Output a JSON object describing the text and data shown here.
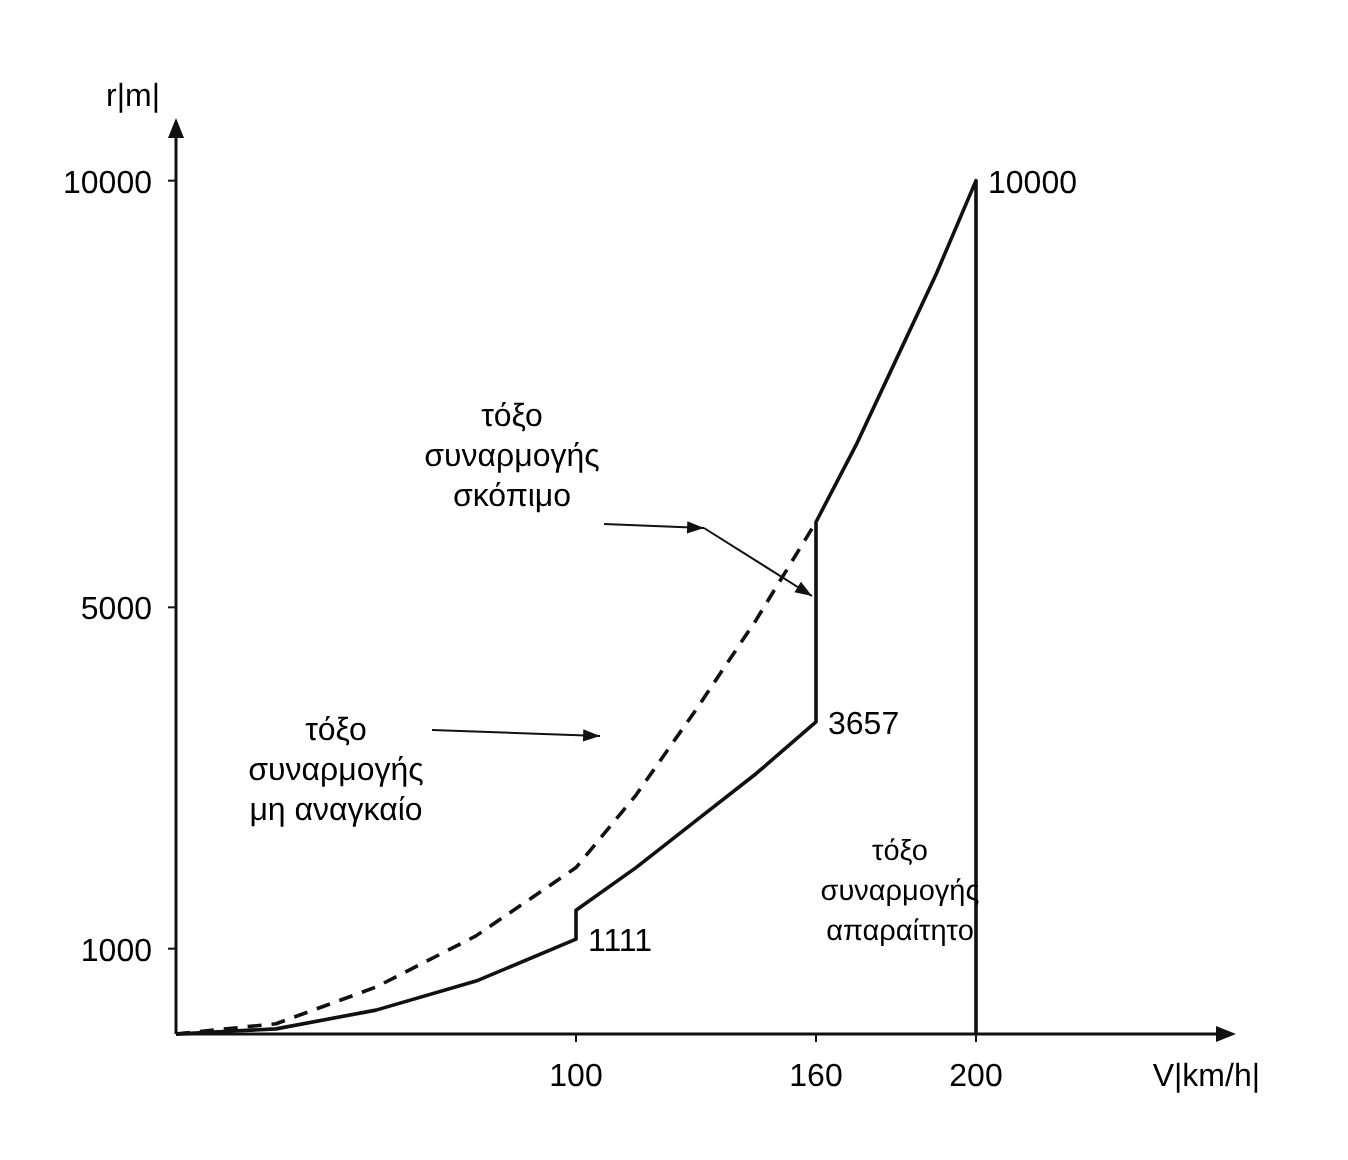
{
  "chart_data": {
    "type": "line",
    "xlabel": "V|km/h|",
    "ylabel": "r|m|",
    "xlim": [
      0,
      260
    ],
    "ylim": [
      0,
      10500
    ],
    "xticks": [
      100,
      160,
      200
    ],
    "yticks": [
      1000,
      5000,
      10000
    ],
    "marker": "none",
    "series": [
      {
        "color": "#111111",
        "line_style": "solid",
        "x": [
          0,
          25,
          50,
          75,
          100,
          100,
          115,
          130,
          145,
          160,
          160,
          170,
          180,
          190,
          200,
          200
        ],
        "values": [
          0,
          60,
          280,
          620,
          1111,
          1450,
          1950,
          2500,
          3050,
          3657,
          6000,
          6900,
          7900,
          8900,
          10000,
          0
        ]
      },
      {
        "color": "#111111",
        "line_style": "dashed",
        "x": [
          0,
          25,
          50,
          75,
          100,
          115,
          130,
          145,
          160
        ],
        "values": [
          0,
          120,
          550,
          1150,
          1950,
          2800,
          3800,
          4850,
          6000
        ]
      }
    ],
    "annotations": [
      {
        "text": "10000",
        "x": 200,
        "y": 10000
      },
      {
        "text": "3657",
        "x": 160,
        "y": 3657
      },
      {
        "text": "1111",
        "x": 100,
        "y": 1111
      },
      "τόξο\nσυναρμογής\nσκόπιμο",
      "τόξο\nσυναρμογής\nμη αναγκαίο",
      "τόξο\nσυναρμογής\nαπαραίτητο"
    ]
  }
}
